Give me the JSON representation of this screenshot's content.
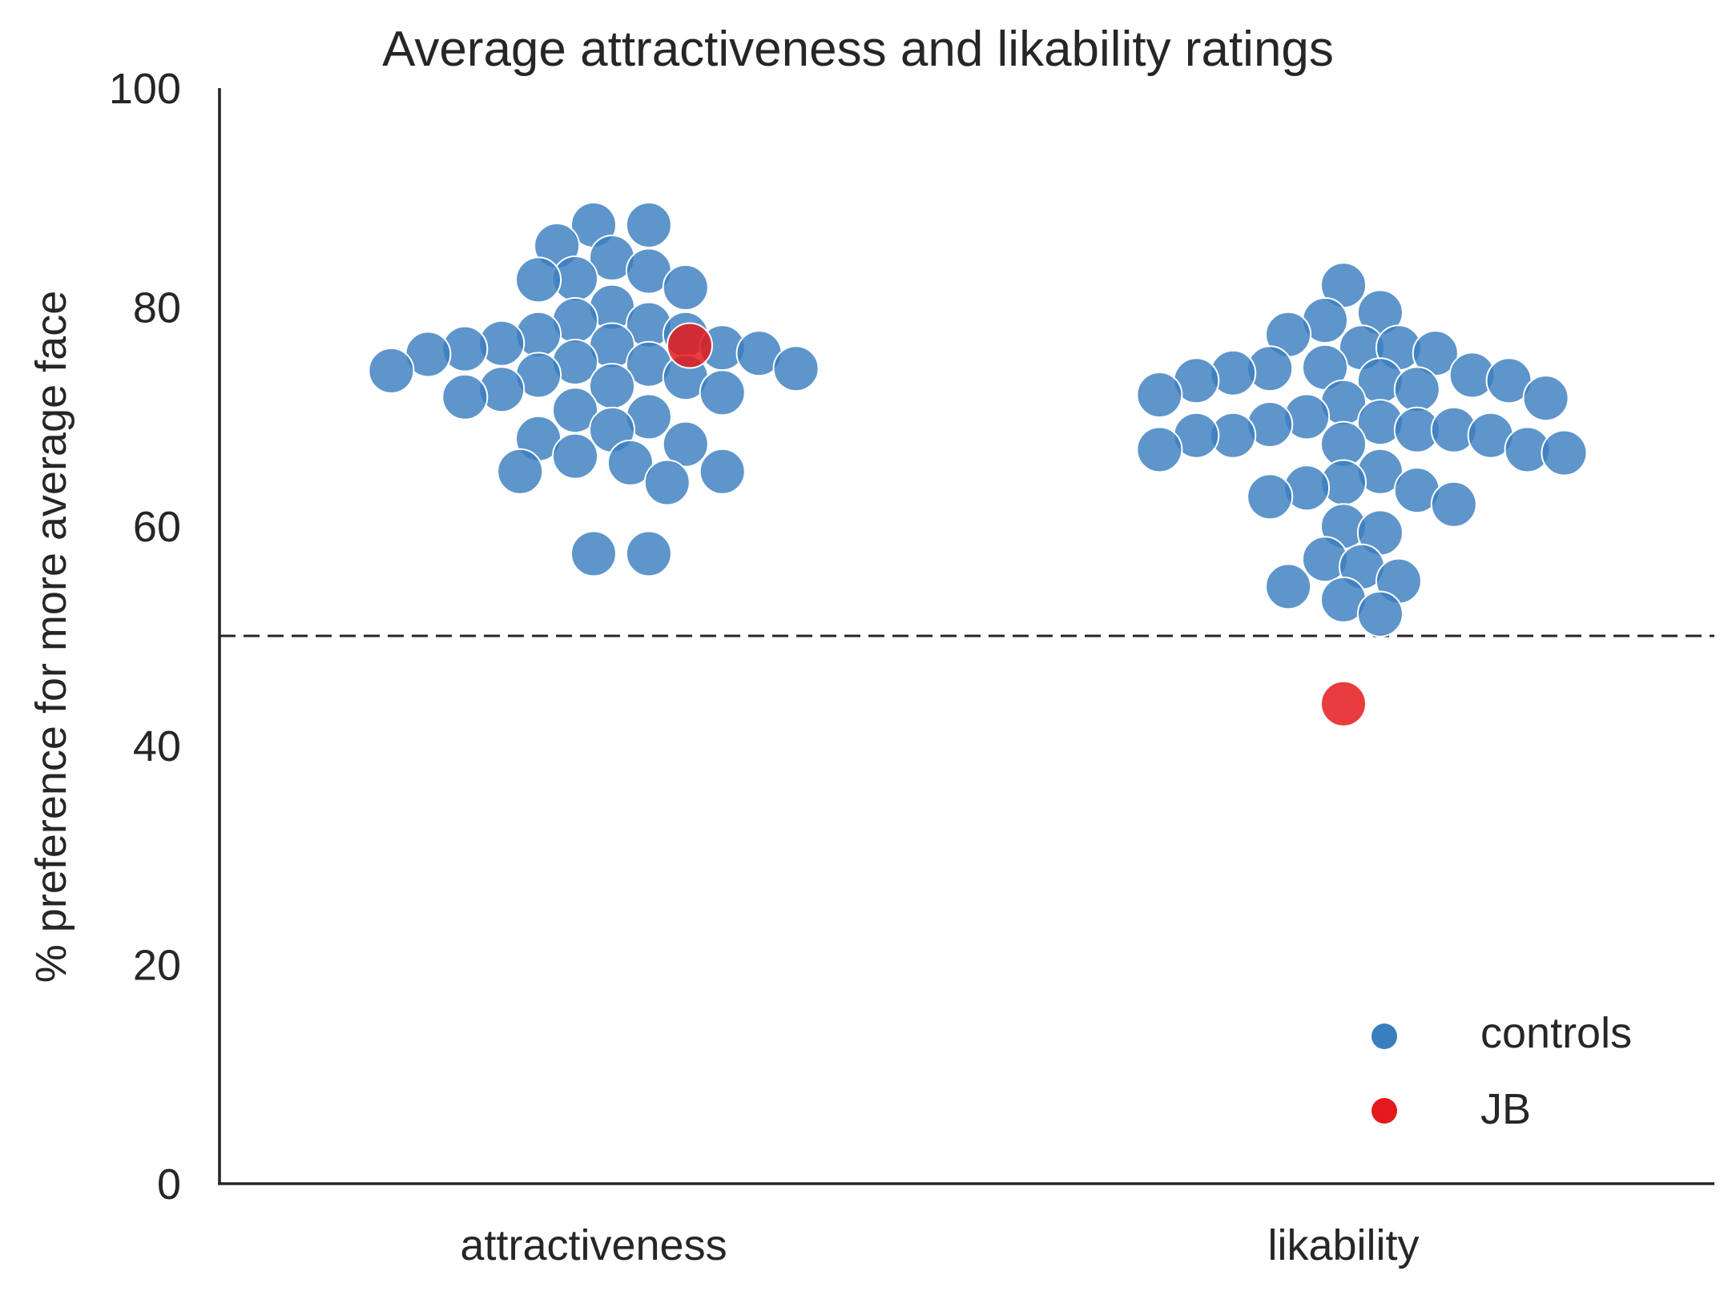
{
  "chart_data": {
    "type": "scatter",
    "subtype": "swarm",
    "title": "Average attractiveness and likability ratings",
    "xlabel": "",
    "ylabel": "% preference for more average face",
    "categories": [
      "attractiveness",
      "likability"
    ],
    "ylim": [
      0,
      100
    ],
    "yticks": [
      0,
      20,
      40,
      60,
      80,
      100
    ],
    "reference_line": {
      "y": 50,
      "style": "dashed"
    },
    "grid": false,
    "legend_position": "lower-right",
    "colors": {
      "controls": "#3a7ebf",
      "JB": "#e41a1c"
    },
    "series": [
      {
        "name": "controls",
        "points": [
          {
            "category": "attractiveness",
            "values": [
              87.5,
              87.5,
              85.6,
              84.5,
              83.3,
              82.5,
              82.6,
              81.8,
              80.0,
              78.8,
              78.4,
              77.5,
              77.5,
              76.7,
              76.5,
              76.3,
              76.2,
              75.8,
              75.7,
              75.0,
              74.8,
              74.4,
              74.2,
              73.8,
              73.6,
              72.8,
              72.5,
              72.2,
              71.8,
              70.6,
              70.0,
              68.8,
              68.0,
              67.5,
              66.4,
              65.8,
              65.0,
              65.0,
              64.0,
              57.5,
              57.5
            ]
          },
          {
            "category": "likability",
            "values": [
              82.0,
              79.5,
              78.8,
              77.5,
              76.3,
              76.3,
              75.8,
              74.5,
              74.4,
              74.0,
              73.8,
              73.3,
              73.3,
              73.3,
              72.5,
              72.0,
              71.7,
              71.3,
              70.0,
              69.5,
              69.3,
              68.8,
              68.8,
              68.3,
              68.3,
              68.3,
              67.5,
              67.0,
              67.0,
              66.7,
              65.0,
              64.0,
              63.5,
              63.3,
              62.7,
              62.0,
              60.0,
              59.4,
              57.0,
              56.3,
              55.0,
              54.5,
              53.3,
              52.0
            ]
          }
        ]
      },
      {
        "name": "JB",
        "points": [
          {
            "category": "attractiveness",
            "values": [
              76.5
            ]
          },
          {
            "category": "likability",
            "values": [
              43.8
            ]
          }
        ]
      }
    ]
  },
  "legend": {
    "items": [
      {
        "label": "controls"
      },
      {
        "label": "JB"
      }
    ]
  }
}
